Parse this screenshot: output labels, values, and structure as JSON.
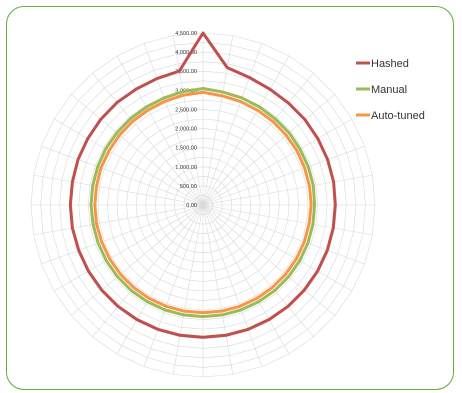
{
  "chart_data": {
    "type": "radar",
    "radial_tick_labels": [
      "0.00",
      "500.00",
      "1,000.00",
      "1,500.00",
      "2,000.00",
      "2,500.00",
      "3,000.00",
      "3,500.00",
      "4,000.00",
      "4,500.00"
    ],
    "rlim": [
      0,
      4500
    ],
    "num_axes": 36,
    "grid": true,
    "legend_position": "top-right",
    "series": [
      {
        "name": "Hashed",
        "color": "#c0504d",
        "values": [
          4500,
          3650,
          3550,
          3500,
          3480,
          3480,
          3470,
          3470,
          3470,
          3460,
          3460,
          3460,
          3460,
          3460,
          3460,
          3460,
          3460,
          3460,
          3460,
          3460,
          3460,
          3460,
          3460,
          3460,
          3460,
          3460,
          3470,
          3470,
          3470,
          3480,
          3480,
          3490,
          3500,
          3500,
          3520,
          3560
        ]
      },
      {
        "name": "Manual",
        "color": "#9bbb59",
        "values": [
          3050,
          3000,
          2980,
          2960,
          2940,
          2940,
          2930,
          2930,
          2930,
          2920,
          2920,
          2920,
          2920,
          2920,
          2920,
          2920,
          2920,
          2920,
          2920,
          2920,
          2920,
          2920,
          2920,
          2920,
          2920,
          2920,
          2920,
          2930,
          2930,
          2930,
          2940,
          2940,
          2950,
          2960,
          2980,
          3010
        ]
      },
      {
        "name": "Auto-tuned",
        "color": "#f79646",
        "values": [
          2950,
          2900,
          2880,
          2860,
          2850,
          2840,
          2840,
          2830,
          2830,
          2830,
          2820,
          2820,
          2820,
          2820,
          2820,
          2820,
          2820,
          2820,
          2820,
          2820,
          2820,
          2820,
          2820,
          2820,
          2820,
          2820,
          2830,
          2830,
          2830,
          2840,
          2840,
          2850,
          2860,
          2870,
          2890,
          2920
        ]
      }
    ]
  }
}
